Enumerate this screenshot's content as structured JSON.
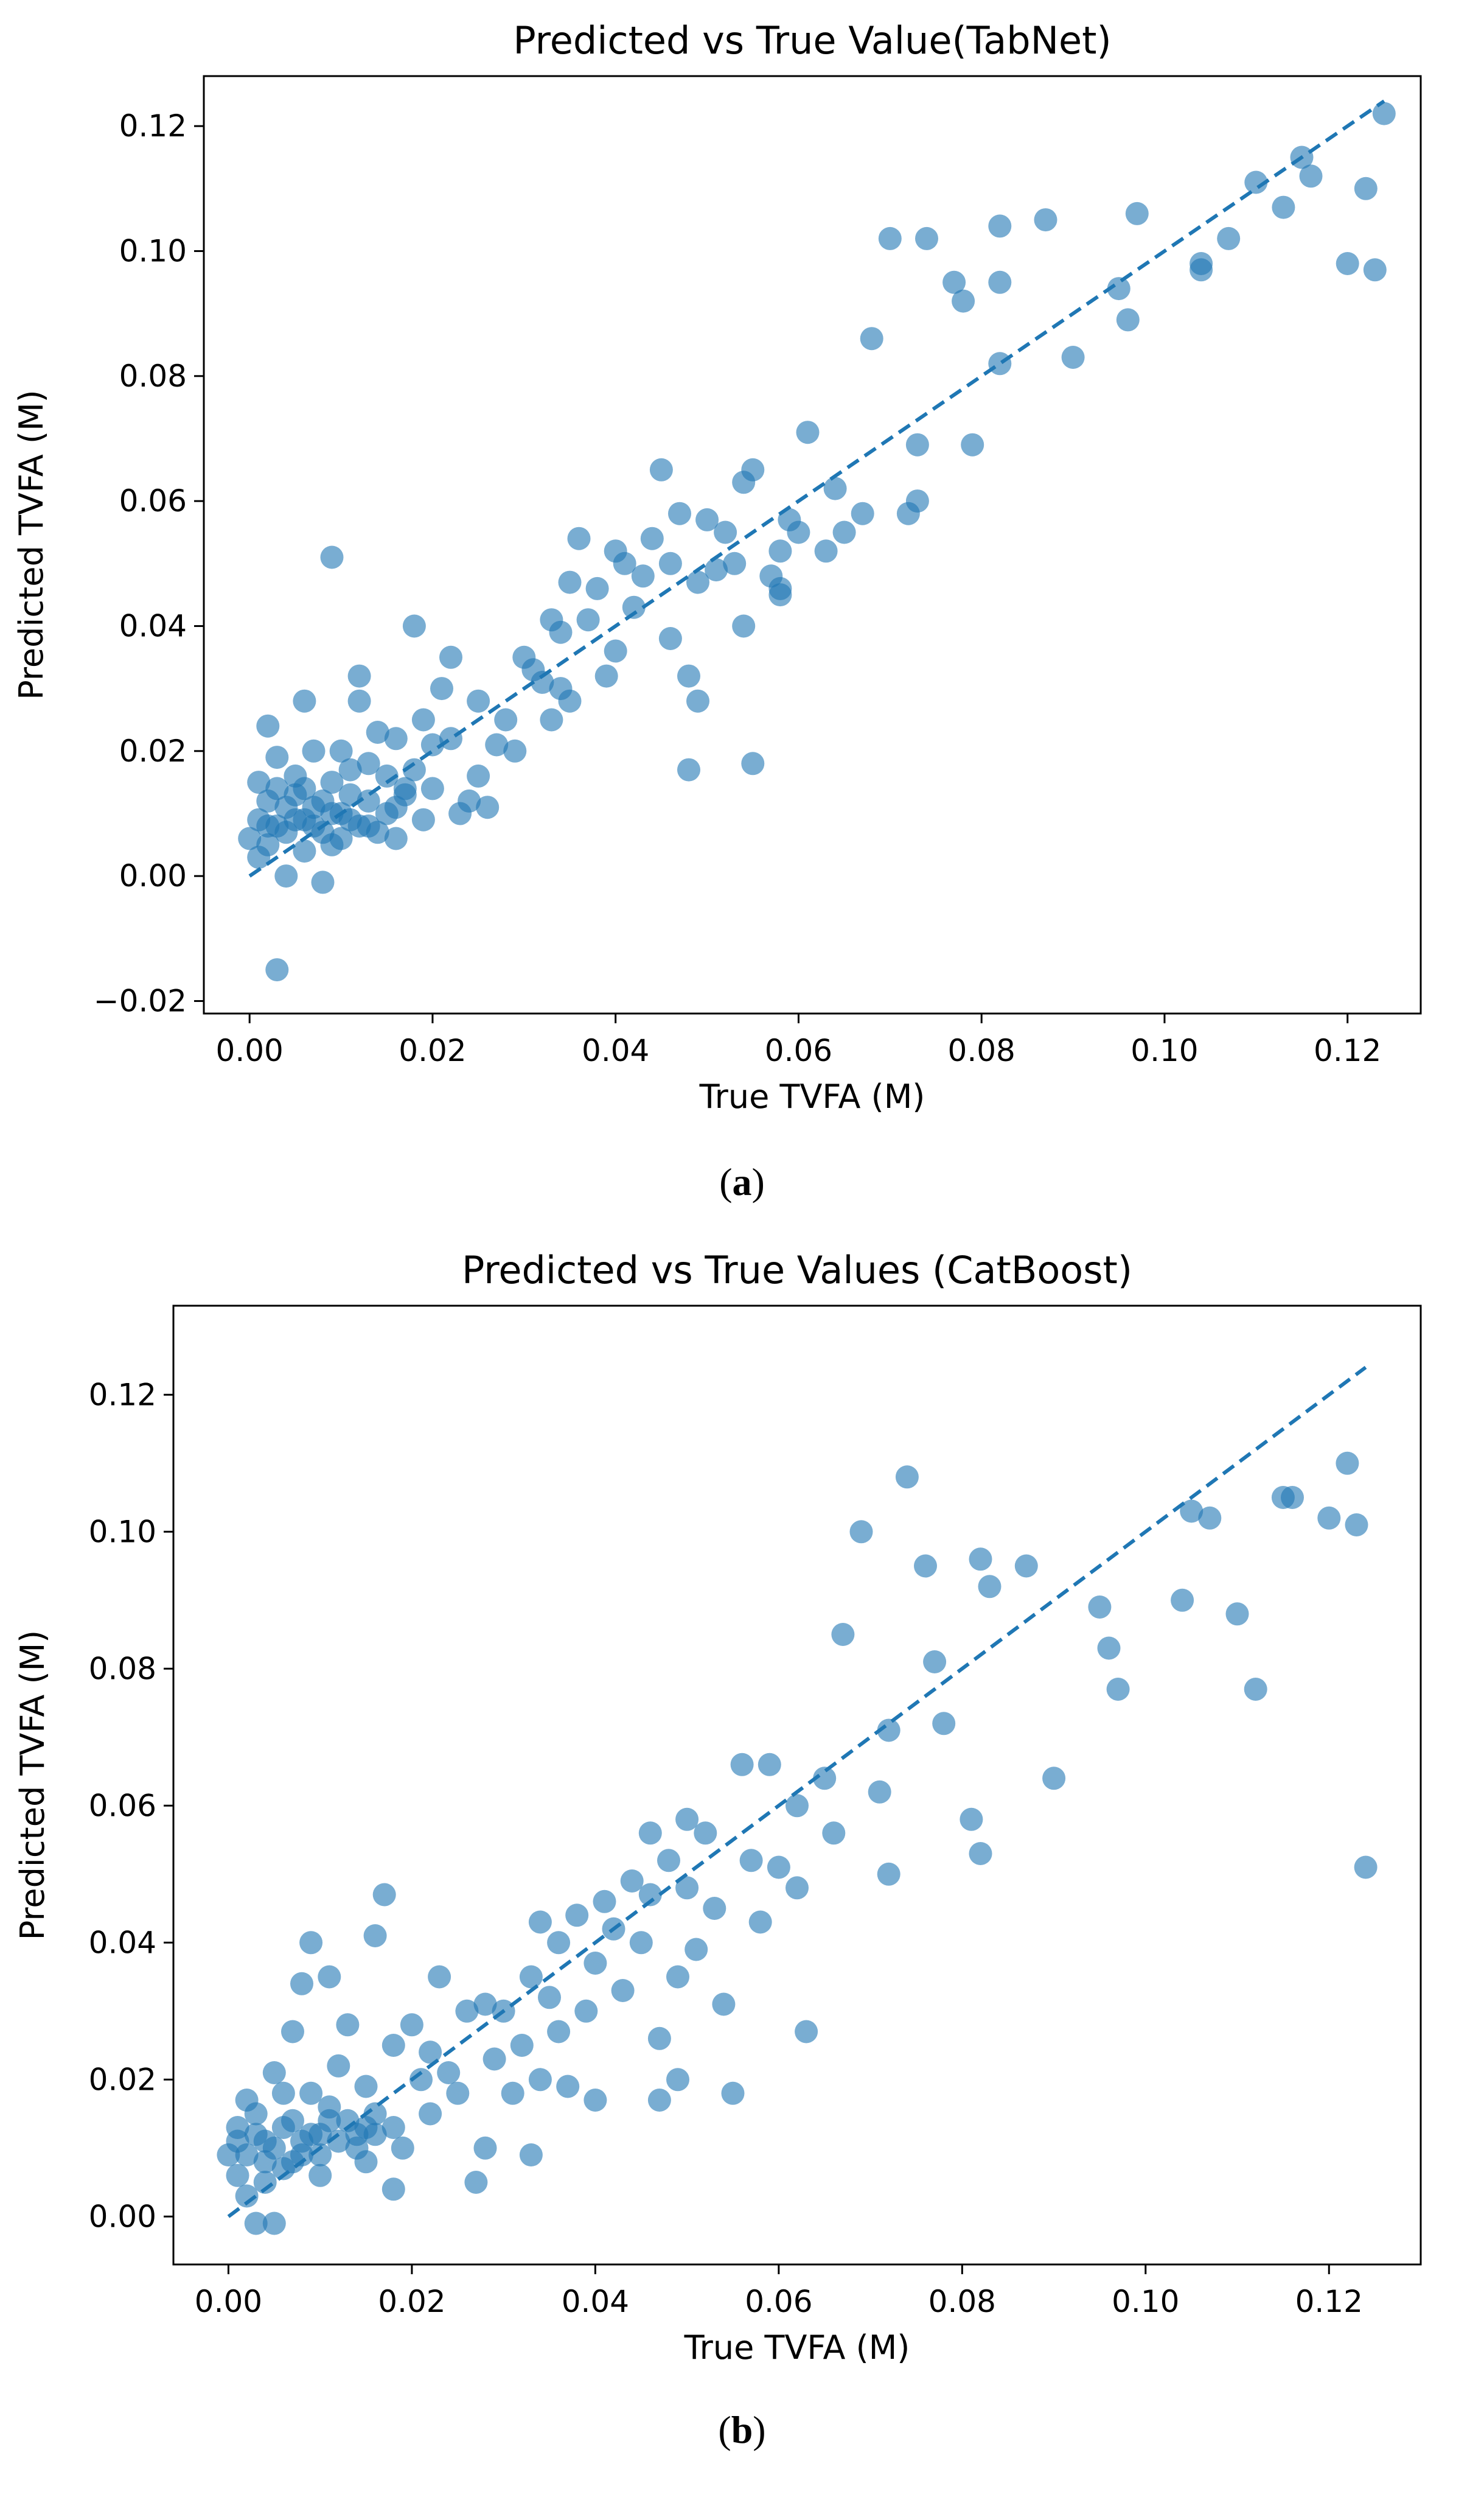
{
  "captions": {
    "a": {
      "open": "(",
      "letter": "a",
      "close": ")"
    },
    "b": {
      "open": "(",
      "letter": "b",
      "close": ")"
    }
  },
  "colors": {
    "point": "#1f77b4",
    "line": "#1f77b4",
    "axis": "#000000"
  },
  "chart_data": [
    {
      "type": "scatter",
      "title": "Predicted vs True Value(TabNet)",
      "xlabel": "True TVFA (M)",
      "ylabel": "Predicted TVFA (M)",
      "xlim": [
        -0.005,
        0.128
      ],
      "ylim": [
        -0.022,
        0.128
      ],
      "xticks": [
        0.0,
        0.02,
        0.04,
        0.06,
        0.08,
        0.1,
        0.12
      ],
      "xtick_labels": [
        "0.00",
        "0.02",
        "0.04",
        "0.06",
        "0.08",
        "0.10",
        "0.12"
      ],
      "yticks": [
        -0.02,
        0.0,
        0.02,
        0.04,
        0.06,
        0.08,
        0.1,
        0.12
      ],
      "ytick_labels": [
        "−0.02",
        "0.00",
        "0.02",
        "0.04",
        "0.06",
        "0.08",
        "0.10",
        "0.12"
      ],
      "reference_line": {
        "style": "dashed",
        "x": [
          0.0,
          0.124
        ],
        "y": [
          0.0,
          0.124
        ]
      },
      "points": [
        [
          0.124,
          0.122
        ],
        [
          0.122,
          0.11
        ],
        [
          0.12,
          0.098
        ],
        [
          0.123,
          0.097
        ],
        [
          0.116,
          0.112
        ],
        [
          0.115,
          0.115
        ],
        [
          0.113,
          0.107
        ],
        [
          0.11,
          0.111
        ],
        [
          0.107,
          0.102
        ],
        [
          0.104,
          0.098
        ],
        [
          0.104,
          0.097
        ],
        [
          0.097,
          0.106
        ],
        [
          0.096,
          0.089
        ],
        [
          0.095,
          0.094
        ],
        [
          0.09,
          0.083
        ],
        [
          0.087,
          0.105
        ],
        [
          0.082,
          0.104
        ],
        [
          0.082,
          0.095
        ],
        [
          0.082,
          0.082
        ],
        [
          0.079,
          0.069
        ],
        [
          0.078,
          0.092
        ],
        [
          0.077,
          0.095
        ],
        [
          0.074,
          0.102
        ],
        [
          0.073,
          0.06
        ],
        [
          0.073,
          0.069
        ],
        [
          0.072,
          0.058
        ],
        [
          0.07,
          0.102
        ],
        [
          0.068,
          0.086
        ],
        [
          0.067,
          0.058
        ],
        [
          0.065,
          0.055
        ],
        [
          0.064,
          0.062
        ],
        [
          0.063,
          0.052
        ],
        [
          0.061,
          0.071
        ],
        [
          0.06,
          0.055
        ],
        [
          0.059,
          0.057
        ],
        [
          0.058,
          0.052
        ],
        [
          0.058,
          0.046
        ],
        [
          0.058,
          0.045
        ],
        [
          0.057,
          0.048
        ],
        [
          0.055,
          0.065
        ],
        [
          0.055,
          0.018
        ],
        [
          0.054,
          0.063
        ],
        [
          0.054,
          0.04
        ],
        [
          0.053,
          0.05
        ],
        [
          0.052,
          0.055
        ],
        [
          0.051,
          0.049
        ],
        [
          0.05,
          0.057
        ],
        [
          0.049,
          0.047
        ],
        [
          0.049,
          0.028
        ],
        [
          0.048,
          0.032
        ],
        [
          0.048,
          0.017
        ],
        [
          0.047,
          0.058
        ],
        [
          0.046,
          0.05
        ],
        [
          0.046,
          0.038
        ],
        [
          0.045,
          0.065
        ],
        [
          0.044,
          0.054
        ],
        [
          0.043,
          0.048
        ],
        [
          0.042,
          0.043
        ],
        [
          0.041,
          0.05
        ],
        [
          0.04,
          0.052
        ],
        [
          0.04,
          0.036
        ],
        [
          0.039,
          0.032
        ],
        [
          0.038,
          0.046
        ],
        [
          0.037,
          0.041
        ],
        [
          0.036,
          0.054
        ],
        [
          0.035,
          0.047
        ],
        [
          0.035,
          0.028
        ],
        [
          0.034,
          0.039
        ],
        [
          0.034,
          0.03
        ],
        [
          0.033,
          0.041
        ],
        [
          0.033,
          0.025
        ],
        [
          0.032,
          0.031
        ],
        [
          0.031,
          0.033
        ],
        [
          0.03,
          0.035
        ],
        [
          0.029,
          0.02
        ],
        [
          0.028,
          0.025
        ],
        [
          0.027,
          0.021
        ],
        [
          0.026,
          0.011
        ],
        [
          0.025,
          0.028
        ],
        [
          0.025,
          0.016
        ],
        [
          0.024,
          0.012
        ],
        [
          0.023,
          0.01
        ],
        [
          0.022,
          0.022
        ],
        [
          0.022,
          0.035
        ],
        [
          0.021,
          0.03
        ],
        [
          0.02,
          0.021
        ],
        [
          0.019,
          0.025
        ],
        [
          0.018,
          0.04
        ],
        [
          0.018,
          0.017
        ],
        [
          0.017,
          0.014
        ],
        [
          0.016,
          0.022
        ],
        [
          0.016,
          0.011
        ],
        [
          0.015,
          0.016
        ],
        [
          0.014,
          0.023
        ],
        [
          0.013,
          0.018
        ],
        [
          0.013,
          0.008
        ],
        [
          0.012,
          0.028
        ],
        [
          0.012,
          0.032
        ],
        [
          0.011,
          0.013
        ],
        [
          0.011,
          0.017
        ],
        [
          0.01,
          0.01
        ],
        [
          0.01,
          0.02
        ],
        [
          0.009,
          0.051
        ],
        [
          0.009,
          0.015
        ],
        [
          0.009,
          0.005
        ],
        [
          0.008,
          0.012
        ],
        [
          0.008,
          -0.001
        ],
        [
          0.007,
          0.02
        ],
        [
          0.007,
          0.008
        ],
        [
          0.006,
          0.014
        ],
        [
          0.006,
          0.028
        ],
        [
          0.006,
          0.004
        ],
        [
          0.005,
          0.016
        ],
        [
          0.005,
          0.009
        ],
        [
          0.004,
          0.011
        ],
        [
          0.004,
          0.0
        ],
        [
          0.003,
          0.019
        ],
        [
          0.003,
          -0.015
        ],
        [
          0.003,
          0.008
        ],
        [
          0.002,
          0.024
        ],
        [
          0.002,
          0.012
        ],
        [
          0.002,
          0.005
        ],
        [
          0.001,
          0.009
        ],
        [
          0.001,
          0.003
        ],
        [
          0.0,
          0.006
        ],
        [
          0.001,
          0.015
        ],
        [
          0.003,
          0.014
        ],
        [
          0.005,
          0.013
        ],
        [
          0.007,
          0.011
        ],
        [
          0.009,
          0.01
        ],
        [
          0.011,
          0.009
        ],
        [
          0.013,
          0.012
        ],
        [
          0.015,
          0.01
        ],
        [
          0.017,
          0.013
        ],
        [
          0.019,
          0.009
        ],
        [
          0.02,
          0.014
        ],
        [
          0.004,
          0.007
        ],
        [
          0.006,
          0.009
        ],
        [
          0.008,
          0.007
        ],
        [
          0.01,
          0.006
        ],
        [
          0.012,
          0.008
        ],
        [
          0.014,
          0.007
        ],
        [
          0.016,
          0.006
        ],
        [
          0.002,
          0.008
        ]
      ]
    },
    {
      "type": "scatter",
      "title": "Predicted vs True Values (CatBoost)",
      "xlabel": "True TVFA (M)",
      "ylabel": "Predicted TVFA (M)",
      "xlim": [
        -0.006,
        0.13
      ],
      "ylim": [
        -0.007,
        0.133
      ],
      "xticks": [
        0.0,
        0.02,
        0.04,
        0.06,
        0.08,
        0.1,
        0.12
      ],
      "xtick_labels": [
        "0.00",
        "0.02",
        "0.04",
        "0.06",
        "0.08",
        "0.10",
        "0.12"
      ],
      "yticks": [
        0.0,
        0.02,
        0.04,
        0.06,
        0.08,
        0.1,
        0.12
      ],
      "ytick_labels": [
        "0.00",
        "0.02",
        "0.04",
        "0.06",
        "0.08",
        "0.10",
        "0.12"
      ],
      "reference_line": {
        "style": "dashed",
        "x": [
          0.0,
          0.124
        ],
        "y": [
          0.0,
          0.124
        ]
      },
      "points": [
        [
          0.124,
          0.051
        ],
        [
          0.123,
          0.101
        ],
        [
          0.122,
          0.11
        ],
        [
          0.12,
          0.102
        ],
        [
          0.116,
          0.105
        ],
        [
          0.115,
          0.105
        ],
        [
          0.112,
          0.077
        ],
        [
          0.11,
          0.088
        ],
        [
          0.107,
          0.102
        ],
        [
          0.105,
          0.103
        ],
        [
          0.104,
          0.09
        ],
        [
          0.097,
          0.077
        ],
        [
          0.096,
          0.083
        ],
        [
          0.095,
          0.089
        ],
        [
          0.09,
          0.064
        ],
        [
          0.087,
          0.095
        ],
        [
          0.083,
          0.092
        ],
        [
          0.082,
          0.096
        ],
        [
          0.082,
          0.053
        ],
        [
          0.081,
          0.058
        ],
        [
          0.078,
          0.072
        ],
        [
          0.077,
          0.081
        ],
        [
          0.076,
          0.095
        ],
        [
          0.074,
          0.108
        ],
        [
          0.072,
          0.05
        ],
        [
          0.072,
          0.071
        ],
        [
          0.071,
          0.062
        ],
        [
          0.069,
          0.1
        ],
        [
          0.067,
          0.085
        ],
        [
          0.066,
          0.056
        ],
        [
          0.065,
          0.064
        ],
        [
          0.063,
          0.027
        ],
        [
          0.062,
          0.06
        ],
        [
          0.062,
          0.048
        ],
        [
          0.06,
          0.051
        ],
        [
          0.059,
          0.066
        ],
        [
          0.058,
          0.043
        ],
        [
          0.057,
          0.052
        ],
        [
          0.056,
          0.066
        ],
        [
          0.055,
          0.018
        ],
        [
          0.054,
          0.031
        ],
        [
          0.053,
          0.045
        ],
        [
          0.052,
          0.056
        ],
        [
          0.051,
          0.039
        ],
        [
          0.05,
          0.058
        ],
        [
          0.05,
          0.048
        ],
        [
          0.049,
          0.02
        ],
        [
          0.049,
          0.035
        ],
        [
          0.048,
          0.052
        ],
        [
          0.047,
          0.026
        ],
        [
          0.047,
          0.017
        ],
        [
          0.046,
          0.056
        ],
        [
          0.046,
          0.047
        ],
        [
          0.045,
          0.04
        ],
        [
          0.044,
          0.049
        ],
        [
          0.043,
          0.033
        ],
        [
          0.042,
          0.042
        ],
        [
          0.041,
          0.046
        ],
        [
          0.04,
          0.037
        ],
        [
          0.04,
          0.017
        ],
        [
          0.039,
          0.03
        ],
        [
          0.038,
          0.044
        ],
        [
          0.037,
          0.019
        ],
        [
          0.036,
          0.04
        ],
        [
          0.036,
          0.027
        ],
        [
          0.035,
          0.032
        ],
        [
          0.034,
          0.02
        ],
        [
          0.034,
          0.043
        ],
        [
          0.033,
          0.035
        ],
        [
          0.033,
          0.009
        ],
        [
          0.032,
          0.025
        ],
        [
          0.031,
          0.018
        ],
        [
          0.03,
          0.03
        ],
        [
          0.029,
          0.023
        ],
        [
          0.028,
          0.01
        ],
        [
          0.028,
          0.031
        ],
        [
          0.027,
          0.005
        ],
        [
          0.026,
          0.03
        ],
        [
          0.025,
          0.018
        ],
        [
          0.024,
          0.021
        ],
        [
          0.023,
          0.035
        ],
        [
          0.022,
          0.015
        ],
        [
          0.022,
          0.024
        ],
        [
          0.021,
          0.02
        ],
        [
          0.02,
          0.028
        ],
        [
          0.019,
          0.01
        ],
        [
          0.018,
          0.025
        ],
        [
          0.018,
          0.004
        ],
        [
          0.017,
          0.047
        ],
        [
          0.016,
          0.015
        ],
        [
          0.016,
          0.041
        ],
        [
          0.015,
          0.019
        ],
        [
          0.015,
          0.008
        ],
        [
          0.014,
          0.012
        ],
        [
          0.013,
          0.028
        ],
        [
          0.012,
          0.022
        ],
        [
          0.011,
          0.035
        ],
        [
          0.011,
          0.014
        ],
        [
          0.01,
          0.012
        ],
        [
          0.01,
          0.006
        ],
        [
          0.009,
          0.04
        ],
        [
          0.009,
          0.018
        ],
        [
          0.008,
          0.011
        ],
        [
          0.008,
          0.034
        ],
        [
          0.007,
          0.027
        ],
        [
          0.007,
          0.008
        ],
        [
          0.006,
          0.018
        ],
        [
          0.006,
          0.013
        ],
        [
          0.005,
          0.021
        ],
        [
          0.005,
          -0.001
        ],
        [
          0.004,
          0.011
        ],
        [
          0.004,
          0.005
        ],
        [
          0.003,
          0.015
        ],
        [
          0.003,
          -0.001
        ],
        [
          0.002,
          0.009
        ],
        [
          0.002,
          0.003
        ],
        [
          0.001,
          0.011
        ],
        [
          0.001,
          0.006
        ],
        [
          0.0,
          0.009
        ],
        [
          0.002,
          0.017
        ],
        [
          0.004,
          0.008
        ],
        [
          0.006,
          0.007
        ],
        [
          0.008,
          0.009
        ],
        [
          0.01,
          0.009
        ],
        [
          0.012,
          0.011
        ],
        [
          0.014,
          0.01
        ],
        [
          0.016,
          0.012
        ],
        [
          0.018,
          0.013
        ],
        [
          0.003,
          0.012
        ],
        [
          0.005,
          0.01
        ],
        [
          0.007,
          0.014
        ],
        [
          0.009,
          0.012
        ],
        [
          0.011,
          0.016
        ],
        [
          0.013,
          0.014
        ],
        [
          0.015,
          0.013
        ],
        [
          0.001,
          0.013
        ]
      ]
    }
  ]
}
